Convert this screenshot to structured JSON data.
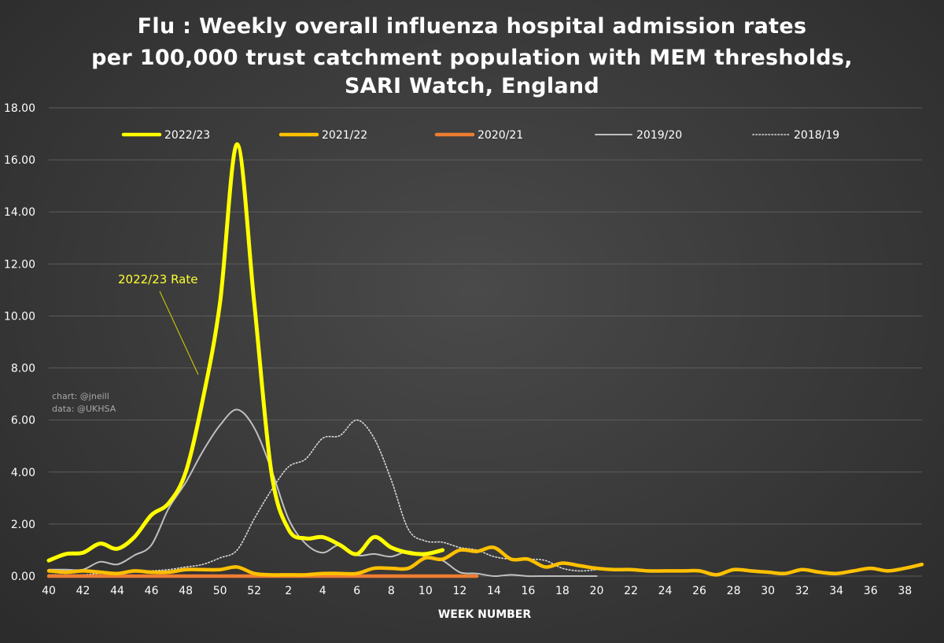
{
  "title": {
    "line1": "Flu : Weekly overall influenza hospital admission rates",
    "line2": "per 100,000 trust catchment population with MEM thresholds,",
    "line3": "SARI Watch, England"
  },
  "credits": {
    "chart": "chart: @jneill",
    "data": "data: @UKHSA"
  },
  "annotation": "2022/23 Rate",
  "chart_data": {
    "type": "line",
    "xlabel": "WEEK NUMBER",
    "ylabel": "",
    "ylim": [
      0,
      18
    ],
    "y_ticks": [
      "0.00",
      "2.00",
      "4.00",
      "6.00",
      "8.00",
      "10.00",
      "12.00",
      "14.00",
      "16.00",
      "18.00"
    ],
    "x_weeks": [
      40,
      41,
      42,
      43,
      44,
      45,
      46,
      47,
      48,
      49,
      50,
      51,
      52,
      1,
      2,
      3,
      4,
      5,
      6,
      7,
      8,
      9,
      10,
      11,
      12,
      13,
      14,
      15,
      16,
      17,
      18,
      19,
      20,
      21,
      22,
      23,
      24,
      25,
      26,
      27,
      28,
      29,
      30,
      31,
      32,
      33,
      34,
      35,
      36,
      37,
      38,
      39
    ],
    "x_tick_labels": [
      "40",
      "42",
      "44",
      "46",
      "48",
      "50",
      "52",
      "2",
      "4",
      "6",
      "8",
      "10",
      "12",
      "14",
      "16",
      "18",
      "20",
      "22",
      "24",
      "26",
      "28",
      "30",
      "32",
      "34",
      "36",
      "38"
    ],
    "legend_position": "top",
    "series": [
      {
        "name": "2022/23",
        "color": "#ffff00",
        "style": "thick",
        "values": [
          0.6,
          0.85,
          0.9,
          1.25,
          1.05,
          1.5,
          2.35,
          2.8,
          4.0,
          6.8,
          10.5,
          16.6,
          10.5,
          4.0,
          1.8,
          1.45,
          1.5,
          1.2,
          0.85,
          1.5,
          1.1,
          0.9,
          0.85,
          1.0
        ]
      },
      {
        "name": "2021/22",
        "color": "#ffc000",
        "style": "thick",
        "values": [
          0.2,
          0.15,
          0.2,
          0.15,
          0.1,
          0.2,
          0.15,
          0.15,
          0.25,
          0.25,
          0.25,
          0.35,
          0.1,
          0.05,
          0.05,
          0.05,
          0.1,
          0.1,
          0.1,
          0.3,
          0.3,
          0.3,
          0.7,
          0.65,
          1.0,
          0.95,
          1.1,
          0.65,
          0.65,
          0.35,
          0.5,
          0.4,
          0.3,
          0.25,
          0.25,
          0.2,
          0.2,
          0.2,
          0.2,
          0.05,
          0.25,
          0.2,
          0.15,
          0.1,
          0.25,
          0.15,
          0.1,
          0.2,
          0.3,
          0.2,
          0.3,
          0.45
        ]
      },
      {
        "name": "2020/21",
        "color": "#ed7d31",
        "style": "thick",
        "values": [
          0.0,
          0.0,
          0.0,
          0.0,
          0.0,
          0.0,
          0.0,
          0.0,
          0.0,
          0.0,
          0.0,
          0.0,
          0.0,
          0.0,
          0.0,
          0.0,
          0.0,
          0.0,
          0.0,
          0.0,
          0.0,
          0.0,
          0.0,
          0.0,
          0.0,
          0.0
        ]
      },
      {
        "name": "2019/20",
        "color": "#bfbfbf",
        "style": "solid",
        "values": [
          0.25,
          0.25,
          0.25,
          0.55,
          0.45,
          0.8,
          1.2,
          2.6,
          3.6,
          4.8,
          5.8,
          6.4,
          5.7,
          4.1,
          2.2,
          1.25,
          0.9,
          1.2,
          0.8,
          0.85,
          0.75,
          0.95,
          0.75,
          0.6,
          0.15,
          0.1,
          0.0,
          0.05,
          0.0,
          0.0,
          0.0,
          0.0,
          0.0
        ]
      },
      {
        "name": "2018/19",
        "color": "#d9d9d9",
        "style": "dotted",
        "values": [
          0.05,
          0.05,
          0.05,
          0.1,
          0.1,
          0.15,
          0.2,
          0.25,
          0.35,
          0.45,
          0.7,
          1.0,
          2.2,
          3.3,
          4.2,
          4.5,
          5.3,
          5.4,
          6.0,
          5.3,
          3.7,
          1.8,
          1.35,
          1.3,
          1.1,
          1.0,
          0.75,
          0.65,
          0.65,
          0.6,
          0.3,
          0.2,
          0.25
        ]
      }
    ]
  }
}
